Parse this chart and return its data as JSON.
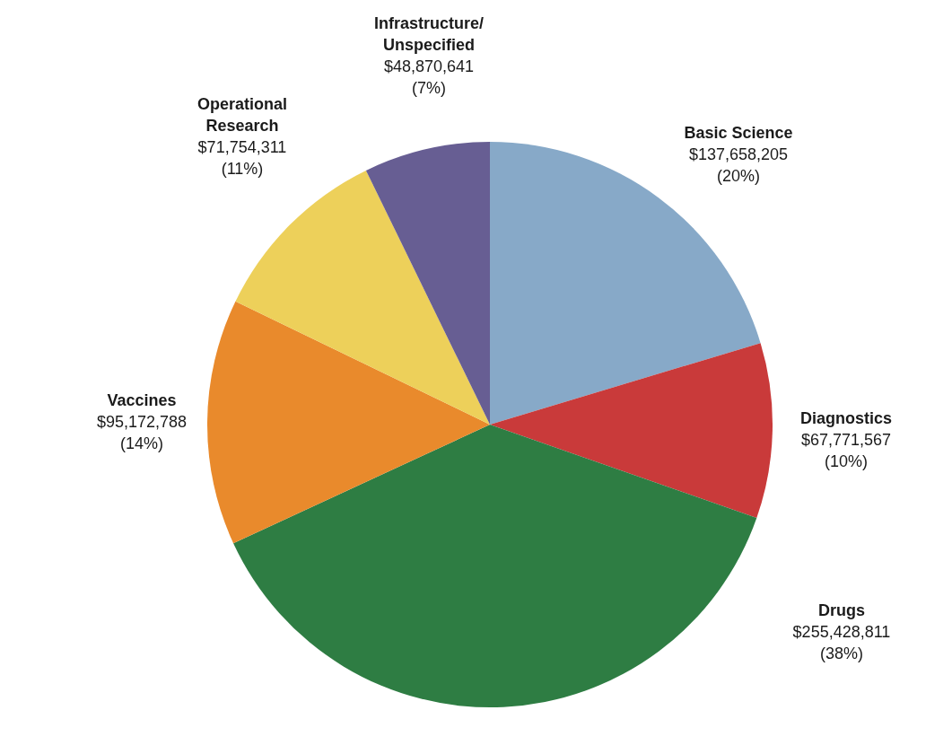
{
  "chart_data": {
    "type": "pie",
    "categories": [
      "Basic Science",
      "Diagnostics",
      "Drugs",
      "Vaccines",
      "Operational\nResearch",
      "Infrastructure/\nUnspecified"
    ],
    "values": [
      137658205,
      67771567,
      255428811,
      95172788,
      71754311,
      48870641
    ],
    "colors": [
      "#87a9c8",
      "#c93a3a",
      "#2e7d43",
      "#e98a2c",
      "#edd05a",
      "#675e93"
    ],
    "value_labels": [
      "$137,658,205\n(20%)",
      "$67,771,567\n(10%)",
      "$255,428,811\n(38%)",
      "$95,172,788\n(14%)",
      "$71,754,311\n(11%)",
      "$48,870,641\n(7%)"
    ]
  }
}
